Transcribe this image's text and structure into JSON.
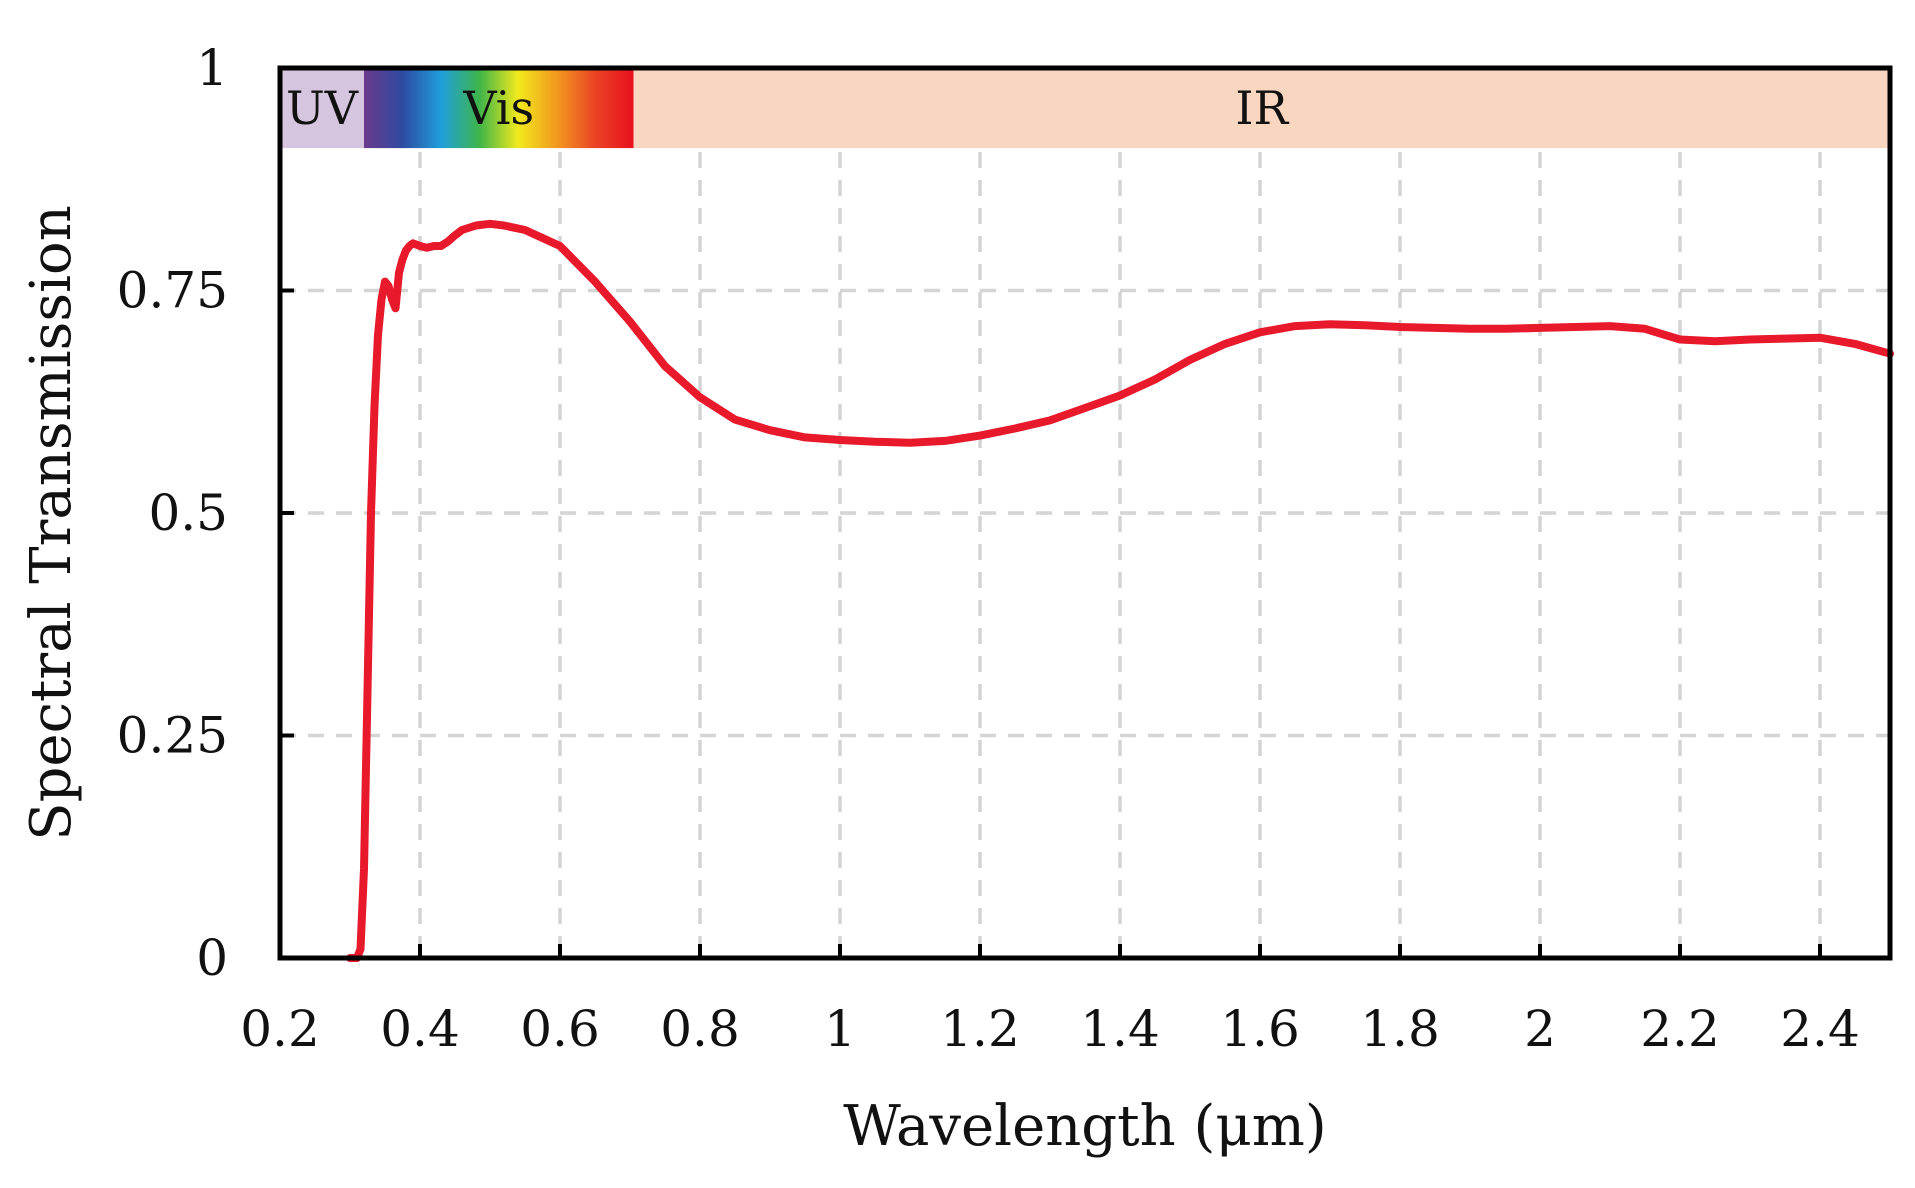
{
  "chart_data": {
    "type": "line",
    "title": "",
    "xlabel": "Wavelength (μm)",
    "ylabel": "Spectral Transmission",
    "xlim": [
      0.2,
      2.5
    ],
    "ylim": [
      0,
      1
    ],
    "grid": true,
    "legend": "none",
    "x_ticks": [
      0.2,
      0.4,
      0.6,
      0.8,
      1.0,
      1.2,
      1.4,
      1.6,
      1.8,
      2.0,
      2.2,
      2.4
    ],
    "x_tick_labels": [
      "0.2",
      "0.4",
      "0.6",
      "0.8",
      "1",
      "1.2",
      "1.4",
      "1.6",
      "1.8",
      "2",
      "2.2",
      "2.4"
    ],
    "y_ticks": [
      0,
      0.25,
      0.5,
      0.75,
      1.0
    ],
    "y_tick_labels": [
      "0",
      "0.25",
      "0.5",
      "0.75",
      "1"
    ],
    "bands": [
      {
        "label": "UV",
        "from": 0.2,
        "to": 0.32,
        "y_from": 0.91,
        "y_to": 1.0,
        "color": "#d6c5df"
      },
      {
        "label": "Vis",
        "from": 0.32,
        "to": 0.705,
        "y_from": 0.91,
        "y_to": 1.0,
        "color": "spectrum"
      },
      {
        "label": "IR",
        "from": 0.705,
        "to": 2.5,
        "y_from": 0.91,
        "y_to": 1.0,
        "color": "#f8d6c0"
      }
    ],
    "spectrum_stops": [
      "#6b3a8c",
      "#2d4aa0",
      "#1f9fdc",
      "#3fb54a",
      "#f1e91c",
      "#f39a1f",
      "#ea4424",
      "#e8101e"
    ],
    "series": [
      {
        "name": "Spectral Transmission",
        "color": "#e8192b",
        "x": [
          0.3,
          0.31,
          0.315,
          0.32,
          0.325,
          0.33,
          0.335,
          0.34,
          0.345,
          0.35,
          0.355,
          0.36,
          0.365,
          0.37,
          0.375,
          0.38,
          0.385,
          0.39,
          0.4,
          0.41,
          0.42,
          0.43,
          0.44,
          0.45,
          0.46,
          0.48,
          0.5,
          0.52,
          0.55,
          0.6,
          0.65,
          0.7,
          0.75,
          0.8,
          0.85,
          0.9,
          0.95,
          1.0,
          1.05,
          1.1,
          1.15,
          1.2,
          1.25,
          1.3,
          1.35,
          1.4,
          1.45,
          1.5,
          1.55,
          1.6,
          1.65,
          1.7,
          1.75,
          1.8,
          1.85,
          1.9,
          1.95,
          2.0,
          2.05,
          2.1,
          2.15,
          2.2,
          2.25,
          2.3,
          2.35,
          2.4,
          2.45,
          2.5
        ],
        "values": [
          0.0,
          0.0,
          0.01,
          0.1,
          0.3,
          0.5,
          0.62,
          0.7,
          0.74,
          0.76,
          0.755,
          0.74,
          0.73,
          0.77,
          0.785,
          0.795,
          0.8,
          0.803,
          0.8,
          0.798,
          0.8,
          0.8,
          0.805,
          0.812,
          0.818,
          0.823,
          0.825,
          0.823,
          0.818,
          0.8,
          0.76,
          0.715,
          0.665,
          0.63,
          0.605,
          0.593,
          0.585,
          0.582,
          0.58,
          0.579,
          0.581,
          0.587,
          0.595,
          0.604,
          0.618,
          0.632,
          0.65,
          0.672,
          0.69,
          0.703,
          0.71,
          0.712,
          0.711,
          0.709,
          0.708,
          0.707,
          0.707,
          0.708,
          0.709,
          0.71,
          0.707,
          0.695,
          0.693,
          0.695,
          0.696,
          0.697,
          0.69,
          0.679
        ]
      }
    ]
  }
}
